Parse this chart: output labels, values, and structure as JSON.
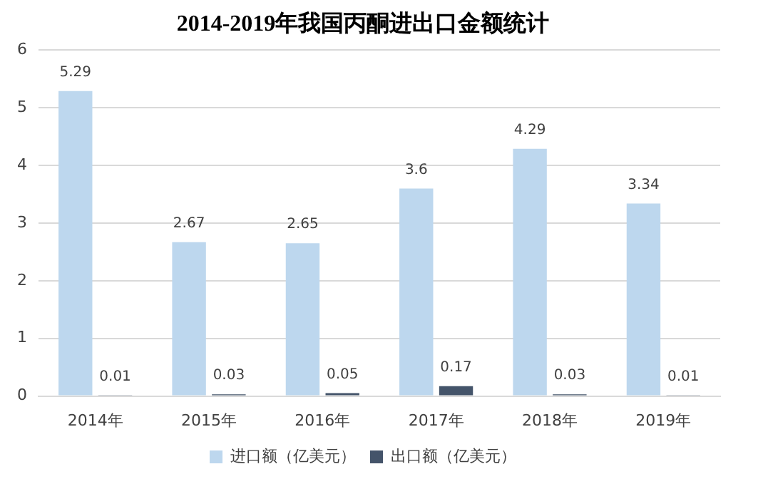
{
  "chart_data": {
    "type": "bar",
    "title": "2014-2019年我国丙酮进出口金额统计",
    "categories": [
      "2014年",
      "2015年",
      "2016年",
      "2017年",
      "2018年",
      "2019年"
    ],
    "series": [
      {
        "name": "进口额（亿美元）",
        "color": "#bdd7ee",
        "values": [
          5.29,
          2.67,
          2.65,
          3.6,
          4.29,
          3.34
        ]
      },
      {
        "name": "出口额（亿美元）",
        "color": "#44546a",
        "values": [
          0.01,
          0.03,
          0.05,
          0.17,
          0.03,
          0.01
        ]
      }
    ],
    "ylim": [
      0,
      6
    ],
    "yticks": [
      0,
      1,
      2,
      3,
      4,
      5,
      6
    ],
    "grid": "y",
    "legend": "bottom",
    "data_labels": true
  }
}
